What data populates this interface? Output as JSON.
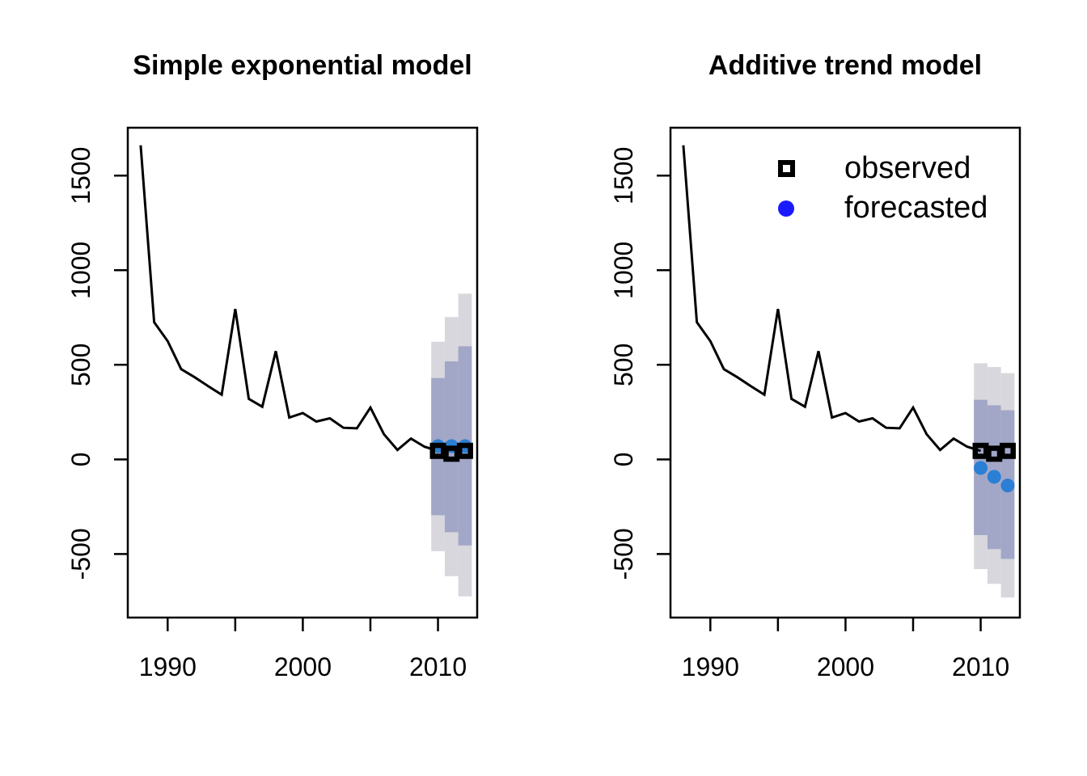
{
  "colors": {
    "background": "#ffffff",
    "series_line": "#000000",
    "observed_marker": "#000000",
    "forecast_marker": "#2b7fd4",
    "legend_forecast_marker": "#1a1aff",
    "band_inner": "#a2a7c7",
    "band_outer": "#d7d7dd",
    "text": "#000000"
  },
  "chart_data": [
    {
      "type": "line",
      "title": "Simple exponential model",
      "xlabel": "",
      "ylabel": "",
      "grid": false,
      "x_domain": [
        1987.05,
        2012.9
      ],
      "y_domain": [
        -836,
        1753
      ],
      "x_ticks": [
        1990,
        1995,
        2000,
        2005,
        2010
      ],
      "x_tick_labels": [
        {
          "value": 1990,
          "label": "1990"
        },
        {
          "value": 2000,
          "label": "2000"
        },
        {
          "value": 2010,
          "label": "2010"
        }
      ],
      "y_ticks": [
        {
          "value": -500,
          "label": "-500"
        },
        {
          "value": 0,
          "label": "0"
        },
        {
          "value": 500,
          "label": "500"
        },
        {
          "value": 1000,
          "label": "1000"
        },
        {
          "value": 1500,
          "label": "1500"
        }
      ],
      "series": [
        {
          "name": "historical",
          "x": [
            1988,
            1989,
            1990,
            1991,
            1992,
            1993,
            1994,
            1995,
            1996,
            1997,
            1998,
            1999,
            2000,
            2001,
            2002,
            2003,
            2004,
            2005,
            2006,
            2007,
            2008,
            2009,
            2010
          ],
          "values": [
            1660,
            725,
            625,
            477,
            434,
            387,
            342,
            795,
            320,
            278,
            572,
            221,
            245,
            200,
            217,
            167,
            164,
            274,
            133,
            50,
            110,
            67,
            45
          ]
        }
      ],
      "observed_points": {
        "x": [
          2010,
          2011,
          2012
        ],
        "values": [
          45,
          30,
          45
        ]
      },
      "forecast_points": {
        "x": [
          2010,
          2011,
          2012
        ],
        "values": [
          70,
          70,
          70
        ]
      },
      "prediction_bands": [
        {
          "x": 2010,
          "inner": [
            -295,
            430
          ],
          "outer": [
            -485,
            622
          ]
        },
        {
          "x": 2011,
          "inner": [
            -385,
            518
          ],
          "outer": [
            -617,
            752
          ]
        },
        {
          "x": 2012,
          "inner": [
            -455,
            598
          ],
          "outer": [
            -724,
            876
          ]
        }
      ]
    },
    {
      "type": "line",
      "title": "Additive trend model",
      "xlabel": "",
      "ylabel": "",
      "grid": false,
      "x_domain": [
        1987.05,
        2012.9
      ],
      "y_domain": [
        -836,
        1753
      ],
      "x_ticks": [
        1990,
        1995,
        2000,
        2005,
        2010
      ],
      "x_tick_labels": [
        {
          "value": 1990,
          "label": "1990"
        },
        {
          "value": 2000,
          "label": "2000"
        },
        {
          "value": 2010,
          "label": "2010"
        }
      ],
      "y_ticks": [
        {
          "value": -500,
          "label": "-500"
        },
        {
          "value": 0,
          "label": "0"
        },
        {
          "value": 500,
          "label": "500"
        },
        {
          "value": 1000,
          "label": "1000"
        },
        {
          "value": 1500,
          "label": "1500"
        }
      ],
      "series": [
        {
          "name": "historical",
          "x": [
            1988,
            1989,
            1990,
            1991,
            1992,
            1993,
            1994,
            1995,
            1996,
            1997,
            1998,
            1999,
            2000,
            2001,
            2002,
            2003,
            2004,
            2005,
            2006,
            2007,
            2008,
            2009,
            2010
          ],
          "values": [
            1660,
            725,
            625,
            477,
            434,
            387,
            342,
            795,
            320,
            278,
            572,
            221,
            245,
            200,
            217,
            167,
            164,
            274,
            133,
            50,
            110,
            67,
            45
          ]
        }
      ],
      "observed_points": {
        "x": [
          2010,
          2011,
          2012
        ],
        "values": [
          45,
          30,
          45
        ]
      },
      "forecast_points": {
        "x": [
          2010,
          2011,
          2012
        ],
        "values": [
          -45,
          -92,
          -138
        ]
      },
      "prediction_bands": [
        {
          "x": 2010,
          "inner": [
            -400,
            315
          ],
          "outer": [
            -580,
            508
          ]
        },
        {
          "x": 2011,
          "inner": [
            -474,
            286
          ],
          "outer": [
            -658,
            488
          ]
        },
        {
          "x": 2012,
          "inner": [
            -526,
            260
          ],
          "outer": [
            -730,
            456
          ]
        }
      ],
      "legend": [
        {
          "label": "observed",
          "marker": "open-square"
        },
        {
          "label": "forecasted",
          "marker": "filled-circle"
        }
      ]
    }
  ]
}
